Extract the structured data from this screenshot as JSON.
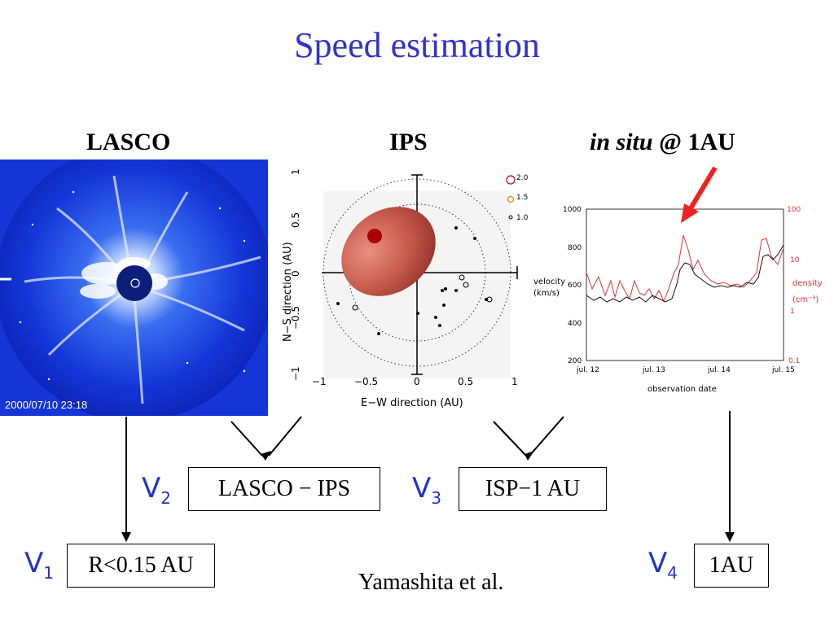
{
  "title": "Speed estimation",
  "columns": {
    "lasco": "LASCO",
    "ips": "IPS",
    "insitu_italic": "in situ",
    "insitu_rest": "@ 1AU"
  },
  "lasco_image": {
    "timestamp": "2000/07/10 23:18"
  },
  "ips_plot": {
    "xlabel": "E−W direction (AU)",
    "ylabel": "N−S direction (AU)",
    "x_ticks": [
      "−1",
      "−0.5",
      "0",
      "0.5",
      "1"
    ],
    "y_ticks": [
      "1",
      "0.5",
      "0",
      "−0.5",
      "−1"
    ],
    "legend": [
      "2.0",
      "1.5",
      "1.0"
    ]
  },
  "insitu_plot": {
    "xlabel": "observation date",
    "left_ylabel_1": "velocity",
    "left_ylabel_2": "(km/s)",
    "right_ylabel_1": "density",
    "right_ylabel_2": "(cm⁻³)",
    "x_ticks": [
      "jul. 12",
      "jul. 13",
      "jul. 14",
      "jul. 15"
    ],
    "left_ticks": [
      "1000",
      "800",
      "600",
      "400",
      "200"
    ],
    "right_ticks": [
      "100",
      "10",
      "1",
      "0.1"
    ]
  },
  "velocities": {
    "v1": {
      "sym": "V",
      "sub": "1",
      "box": "R<0.15 AU"
    },
    "v2": {
      "sym": "V",
      "sub": "2",
      "box": "LASCO − IPS"
    },
    "v3": {
      "sym": "V",
      "sub": "3",
      "box": "ISP−1 AU"
    },
    "v4": {
      "sym": "V",
      "sub": "4",
      "box": "1AU"
    }
  },
  "credit": "Yamashita et al.",
  "colors": {
    "title": "#3333cc",
    "vlabel": "#2233cc",
    "arrow": "#ee2222",
    "density": "#dd3333"
  }
}
